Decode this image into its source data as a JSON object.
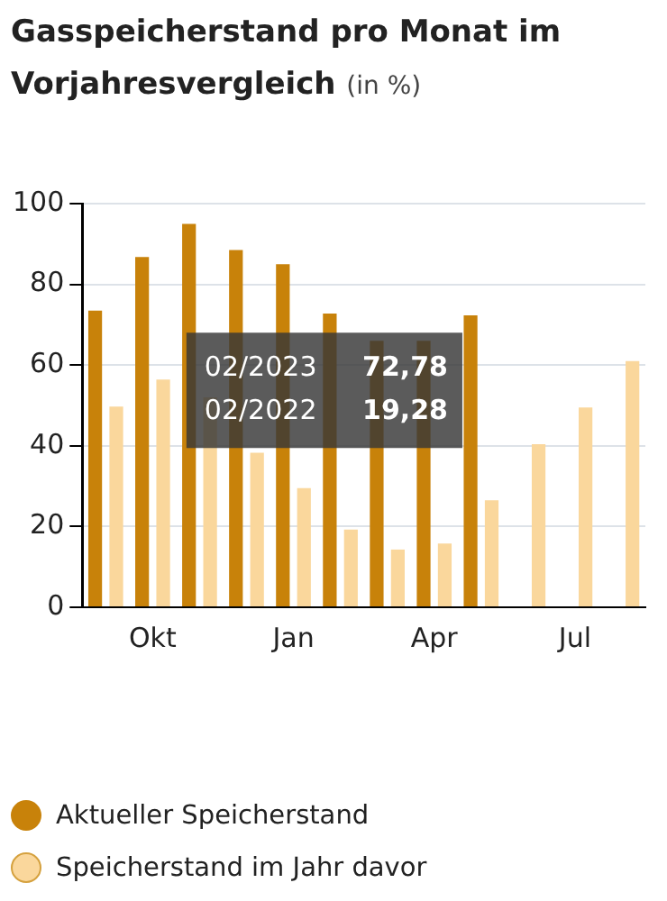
{
  "chart_data": {
    "type": "bar",
    "title": "Gasspeicherstand pro Monat im Vorjahresvergleich",
    "subtitle": "(in %)",
    "categories": [
      null,
      "Okt",
      null,
      null,
      "Jan",
      null,
      null,
      "Apr",
      null,
      null,
      "Jul",
      null
    ],
    "series": [
      {
        "name": "Aktueller Speicherstand",
        "color": "#c8820a",
        "values": [
          73.5,
          86.8,
          95,
          88.5,
          85,
          72.78,
          66,
          66,
          72.3,
          null,
          null,
          null
        ]
      },
      {
        "name": "Speicherstand im Jahr davor",
        "color": "#fad79c",
        "values": [
          49.7,
          56.4,
          52,
          38.3,
          29.5,
          19.28,
          14.3,
          15.8,
          26.5,
          40.4,
          49.5,
          61
        ]
      }
    ],
    "ylim": [
      0,
      100
    ],
    "yticks": [
      0,
      20,
      40,
      60,
      80,
      100
    ],
    "grid": "y",
    "legend": "bottom",
    "annotations": [
      "02/2023 72,78",
      "02/2022 19,28"
    ]
  }
}
